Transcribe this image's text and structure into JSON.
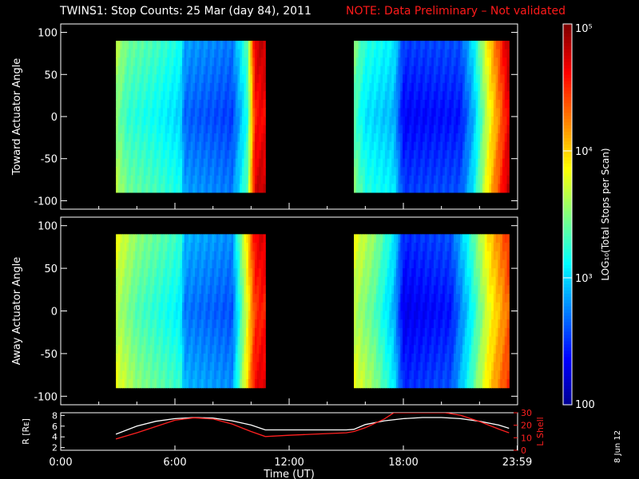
{
  "header": {
    "title": "TWINS1: Stop Counts: 25 Mar (day  84), 2011",
    "note": "NOTE: Data Preliminary – Not validated"
  },
  "date_stamp": "8 Jun 12",
  "colors": {
    "background": "#000000",
    "axes": "#ffffff",
    "note": "#ff1a1a",
    "r_trace": "#ffffff",
    "lshell_trace": "#ff2020",
    "colormap": [
      "#00008f",
      "#0000ff",
      "#0080ff",
      "#00ffff",
      "#80ff80",
      "#ffff00",
      "#ff8000",
      "#ff0000",
      "#800000"
    ]
  },
  "chart_data": [
    {
      "type": "heatmap",
      "name": "toward",
      "ylabel": "Toward Actuator Angle",
      "ylim": [
        -110,
        110
      ],
      "yticks": [
        100,
        50,
        0,
        -50,
        -100
      ],
      "xlim": [
        0,
        24
      ],
      "data_blocks": [
        {
          "t_start": 2.9,
          "t_end": 10.75,
          "angle_range": [
            -90,
            90
          ]
        },
        {
          "t_start": 15.4,
          "t_end": 23.55,
          "angle_range": [
            -90,
            90
          ]
        }
      ],
      "time_profile": [
        {
          "t": 2.9,
          "level": 0.5
        },
        {
          "t": 3.5,
          "level": 0.42
        },
        {
          "t": 5.0,
          "level": 0.38
        },
        {
          "t": 6.3,
          "level": 0.33
        },
        {
          "t": 6.5,
          "level": 0.22
        },
        {
          "t": 9.0,
          "level": 0.18
        },
        {
          "t": 9.8,
          "level": 0.4
        },
        {
          "t": 10.2,
          "level": 0.85
        },
        {
          "t": 10.6,
          "level": 0.88
        },
        {
          "t": 15.4,
          "level": 0.45
        },
        {
          "t": 16.0,
          "level": 0.35
        },
        {
          "t": 17.5,
          "level": 0.3
        },
        {
          "t": 18.0,
          "level": 0.12
        },
        {
          "t": 21.0,
          "level": 0.14
        },
        {
          "t": 21.7,
          "level": 0.3
        },
        {
          "t": 22.5,
          "level": 0.6
        },
        {
          "t": 23.55,
          "level": 0.9
        }
      ]
    },
    {
      "type": "heatmap",
      "name": "away",
      "ylabel": "Away Actuator Angle",
      "xlabel": "Time (UT)",
      "ylim": [
        -110,
        110
      ],
      "yticks": [
        100,
        50,
        0,
        -50,
        -100
      ],
      "xlim": [
        0,
        24
      ],
      "data_blocks": [
        {
          "t_start": 2.9,
          "t_end": 10.75,
          "angle_range": [
            -90,
            90
          ]
        },
        {
          "t_start": 15.4,
          "t_end": 23.55,
          "angle_range": [
            -90,
            90
          ]
        }
      ],
      "time_profile": [
        {
          "t": 2.9,
          "level": 0.55
        },
        {
          "t": 4.0,
          "level": 0.45
        },
        {
          "t": 6.3,
          "level": 0.36
        },
        {
          "t": 6.5,
          "level": 0.24
        },
        {
          "t": 9.0,
          "level": 0.2
        },
        {
          "t": 9.8,
          "level": 0.6
        },
        {
          "t": 10.2,
          "level": 0.82
        },
        {
          "t": 10.6,
          "level": 0.85
        },
        {
          "t": 15.4,
          "level": 0.55
        },
        {
          "t": 16.5,
          "level": 0.45
        },
        {
          "t": 17.5,
          "level": 0.3
        },
        {
          "t": 18.0,
          "level": 0.1
        },
        {
          "t": 20.5,
          "level": 0.14
        },
        {
          "t": 21.5,
          "level": 0.35
        },
        {
          "t": 22.5,
          "level": 0.6
        },
        {
          "t": 23.55,
          "level": 0.78
        }
      ]
    },
    {
      "type": "colorbar",
      "label": "LOG₁₀(Total Stops per Scan)",
      "scale": "log",
      "range": [
        100,
        100000
      ],
      "ticks": [
        {
          "value": 100000,
          "text": "10⁵"
        },
        {
          "value": 10000,
          "text": "10⁴"
        },
        {
          "value": 1000,
          "text": "10³"
        },
        {
          "value": 100,
          "text": "100"
        }
      ]
    },
    {
      "type": "line",
      "name": "ephemeris",
      "xlim": [
        0,
        24
      ],
      "xticks": [
        {
          "value": 0,
          "text": "0:00"
        },
        {
          "value": 6,
          "text": "6:00"
        },
        {
          "value": 12,
          "text": "12:00"
        },
        {
          "value": 18,
          "text": "18:00"
        },
        {
          "value": 23.98,
          "text": "23:59"
        }
      ],
      "left_axis": {
        "label": "R [Rᴇ]",
        "ylim": [
          1.5,
          8.5
        ],
        "ticks": [
          2,
          4,
          6,
          8
        ]
      },
      "right_axis": {
        "label": "L Shell",
        "ylim": [
          0,
          30
        ],
        "ticks": [
          0,
          10,
          20,
          30
        ]
      },
      "series": [
        {
          "axis": "left",
          "x": [
            2.9,
            4,
            5,
            6,
            7,
            8,
            9,
            10,
            10.75,
            12,
            13.5,
            15,
            15.4,
            16,
            17,
            18,
            19,
            20,
            21,
            22,
            23,
            23.55
          ],
          "y": [
            4.5,
            6.0,
            6.9,
            7.4,
            7.6,
            7.5,
            7.0,
            6.2,
            5.3,
            5.3,
            5.3,
            5.3,
            5.4,
            6.3,
            7.0,
            7.4,
            7.6,
            7.6,
            7.4,
            6.9,
            6.2,
            5.6
          ]
        },
        {
          "axis": "right",
          "x": [
            2.9,
            4,
            5,
            6,
            7,
            8,
            9,
            10,
            10.75,
            12,
            13.5,
            15,
            15.4,
            16,
            17,
            17.5,
            20.2,
            21,
            22,
            23,
            23.55
          ],
          "y": [
            9,
            14,
            19,
            24,
            26,
            25,
            21,
            15,
            11,
            12,
            13,
            14,
            15,
            18,
            25,
            30,
            30,
            28,
            23,
            17,
            14
          ]
        }
      ]
    }
  ]
}
